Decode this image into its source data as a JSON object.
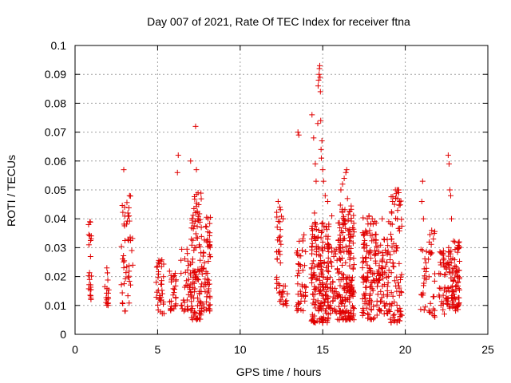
{
  "chart_data": {
    "type": "scatter",
    "title": "Day 007 of 2021, Rate Of TEC Index for receiver ftna",
    "xlabel": "GPS time / hours",
    "ylabel": "ROTI / TECUs",
    "xlim": [
      0,
      25
    ],
    "ylim": [
      0,
      0.1
    ],
    "xticks": [
      "0",
      "5",
      "10",
      "15",
      "20",
      "25"
    ],
    "yticks": [
      "0",
      "0.01",
      "0.02",
      "0.03",
      "0.04",
      "0.05",
      "0.06",
      "0.07",
      "0.08",
      "0.09",
      "0.1"
    ],
    "grid": true,
    "marker": "+",
    "color": "#e00000",
    "clusters": [
      {
        "x": [
          0.8,
          1.0
        ],
        "ymin": 0.009,
        "ymax": 0.039,
        "count": 22
      },
      {
        "x": [
          1.8,
          2.1
        ],
        "ymin": 0.01,
        "ymax": 0.024,
        "count": 18
      },
      {
        "x": [
          2.8,
          3.5
        ],
        "ymin": 0.008,
        "ymax": 0.048,
        "count": 45
      },
      {
        "x": [
          4.9,
          5.4
        ],
        "ymin": 0.007,
        "ymax": 0.026,
        "count": 35
      },
      {
        "x": [
          5.7,
          6.2
        ],
        "ymin": 0.008,
        "ymax": 0.022,
        "count": 28
      },
      {
        "x": [
          6.4,
          7.0
        ],
        "ymin": 0.008,
        "ymax": 0.03,
        "count": 35
      },
      {
        "x": [
          7.0,
          7.7
        ],
        "ymin": 0.005,
        "ymax": 0.049,
        "count": 110
      },
      {
        "x": [
          7.7,
          8.2
        ],
        "ymin": 0.008,
        "ymax": 0.042,
        "count": 60
      },
      {
        "x": [
          12.2,
          12.6
        ],
        "ymin": 0.011,
        "ymax": 0.046,
        "count": 35
      },
      {
        "x": [
          12.6,
          12.9
        ],
        "ymin": 0.01,
        "ymax": 0.02,
        "count": 10
      },
      {
        "x": [
          13.4,
          14.0
        ],
        "ymin": 0.008,
        "ymax": 0.036,
        "count": 45
      },
      {
        "x": [
          14.3,
          15.4
        ],
        "ymin": 0.004,
        "ymax": 0.04,
        "count": 190
      },
      {
        "x": [
          15.4,
          15.9
        ],
        "ymin": 0.007,
        "ymax": 0.03,
        "count": 40
      },
      {
        "x": [
          15.9,
          16.9
        ],
        "ymin": 0.005,
        "ymax": 0.045,
        "count": 190
      },
      {
        "x": [
          17.4,
          18.3
        ],
        "ymin": 0.005,
        "ymax": 0.041,
        "count": 120
      },
      {
        "x": [
          18.3,
          19.1
        ],
        "ymin": 0.007,
        "ymax": 0.033,
        "count": 75
      },
      {
        "x": [
          19.1,
          19.8
        ],
        "ymin": 0.004,
        "ymax": 0.05,
        "count": 80
      },
      {
        "x": [
          20.9,
          21.3
        ],
        "ymin": 0.008,
        "ymax": 0.03,
        "count": 20
      },
      {
        "x": [
          21.4,
          21.8
        ],
        "ymin": 0.006,
        "ymax": 0.036,
        "count": 25
      },
      {
        "x": [
          22.0,
          22.6
        ],
        "ymin": 0.007,
        "ymax": 0.029,
        "count": 45
      },
      {
        "x": [
          22.6,
          23.3
        ],
        "ymin": 0.008,
        "ymax": 0.033,
        "count": 90
      }
    ],
    "outliers": [
      [
        0.82,
        0.038
      ],
      [
        0.9,
        0.039
      ],
      [
        2.95,
        0.057
      ],
      [
        3.0,
        0.044
      ],
      [
        3.3,
        0.048
      ],
      [
        3.2,
        0.042
      ],
      [
        6.25,
        0.062
      ],
      [
        6.2,
        0.056
      ],
      [
        7.0,
        0.06
      ],
      [
        7.3,
        0.072
      ],
      [
        7.35,
        0.057
      ],
      [
        7.45,
        0.049
      ],
      [
        12.3,
        0.046
      ],
      [
        12.4,
        0.044
      ],
      [
        12.6,
        0.04
      ],
      [
        13.5,
        0.07
      ],
      [
        13.55,
        0.069
      ],
      [
        14.35,
        0.076
      ],
      [
        14.45,
        0.068
      ],
      [
        14.5,
        0.042
      ],
      [
        14.55,
        0.059
      ],
      [
        14.6,
        0.053
      ],
      [
        14.7,
        0.073
      ],
      [
        14.72,
        0.086
      ],
      [
        14.75,
        0.088
      ],
      [
        14.78,
        0.09
      ],
      [
        14.8,
        0.092
      ],
      [
        14.82,
        0.093
      ],
      [
        14.84,
        0.089
      ],
      [
        14.86,
        0.084
      ],
      [
        14.88,
        0.074
      ],
      [
        14.9,
        0.064
      ],
      [
        14.92,
        0.061
      ],
      [
        14.95,
        0.067
      ],
      [
        15.0,
        0.057
      ],
      [
        15.05,
        0.053
      ],
      [
        15.15,
        0.048
      ],
      [
        15.3,
        0.046
      ],
      [
        15.55,
        0.041
      ],
      [
        16.1,
        0.05
      ],
      [
        16.2,
        0.052
      ],
      [
        16.3,
        0.054
      ],
      [
        16.4,
        0.056
      ],
      [
        16.45,
        0.057
      ],
      [
        16.5,
        0.047
      ],
      [
        17.7,
        0.04
      ],
      [
        17.8,
        0.041
      ],
      [
        18.0,
        0.04
      ],
      [
        18.6,
        0.04
      ],
      [
        19.0,
        0.039
      ],
      [
        19.4,
        0.05
      ],
      [
        19.5,
        0.05
      ],
      [
        19.6,
        0.05
      ],
      [
        19.35,
        0.045
      ],
      [
        21.05,
        0.053
      ],
      [
        21.0,
        0.046
      ],
      [
        21.1,
        0.04
      ],
      [
        21.6,
        0.036
      ],
      [
        21.7,
        0.033
      ],
      [
        22.6,
        0.062
      ],
      [
        22.65,
        0.059
      ],
      [
        22.7,
        0.05
      ],
      [
        22.75,
        0.048
      ],
      [
        22.8,
        0.04
      ],
      [
        23.0,
        0.032
      ]
    ]
  }
}
